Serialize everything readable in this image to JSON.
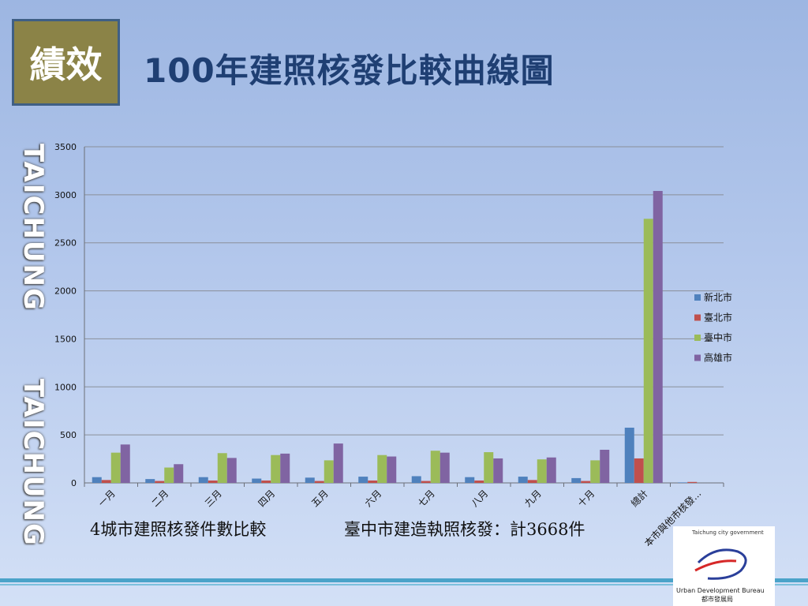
{
  "badge": "績效",
  "title": "100年建照核發比較曲線圖",
  "side_text": "TAICHUNG",
  "captions": {
    "left": "4城市建照核發件數比較",
    "right": "臺中市建造執照核發：計3668件"
  },
  "logo": {
    "top_text": "Taichung city government",
    "bureau": "Urban Development Bureau",
    "bureau_zh": "都市發展局"
  },
  "chart_data": {
    "type": "bar",
    "categories": [
      "一月",
      "二月",
      "三月",
      "四月",
      "五月",
      "六月",
      "七月",
      "八月",
      "九月",
      "十月",
      "總計",
      "本市與他市核發..."
    ],
    "series": [
      {
        "name": "新北市",
        "color": "#4f81bd",
        "values": [
          60,
          40,
          60,
          45,
          55,
          65,
          70,
          60,
          65,
          50,
          575,
          5
        ]
      },
      {
        "name": "臺北市",
        "color": "#c0504d",
        "values": [
          30,
          20,
          25,
          25,
          20,
          25,
          20,
          25,
          30,
          20,
          255,
          10
        ]
      },
      {
        "name": "臺中市",
        "color": "#9bbb59",
        "values": [
          315,
          160,
          310,
          290,
          235,
          290,
          335,
          320,
          245,
          235,
          2750,
          0
        ]
      },
      {
        "name": "高雄市",
        "color": "#8064a2",
        "values": [
          400,
          195,
          260,
          305,
          410,
          275,
          315,
          255,
          265,
          345,
          3040,
          0
        ]
      }
    ],
    "ylim": [
      0,
      3500
    ],
    "yticks": [
      0,
      500,
      1000,
      1500,
      2000,
      2500,
      3000,
      3500
    ],
    "grid": true,
    "legend": "right"
  }
}
